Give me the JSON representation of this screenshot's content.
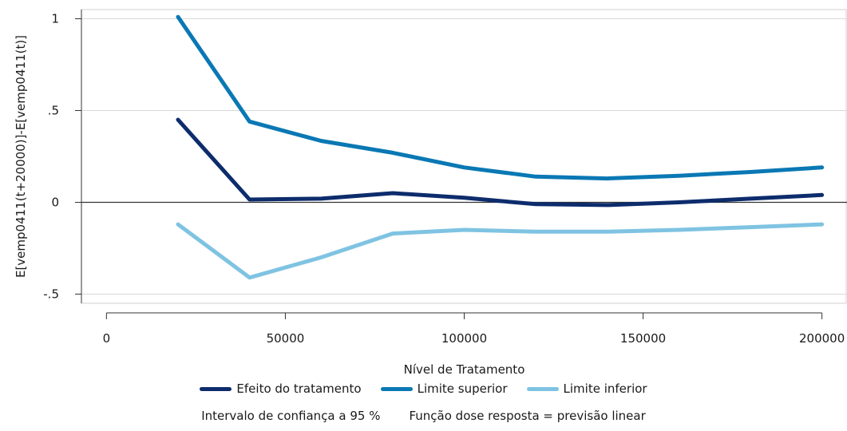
{
  "chart_data": {
    "type": "line",
    "xlabel": "Nível de Tratamento",
    "ylabel": "E[vemp0411(t+20000)]-E[vemp0411(t)]",
    "xlim": [
      -7000,
      207000
    ],
    "ylim": [
      -0.55,
      1.05
    ],
    "x_ticks": [
      0,
      50000,
      100000,
      150000,
      200000
    ],
    "x_tick_labels": [
      "0",
      "50000",
      "100000",
      "150000",
      "200000"
    ],
    "y_ticks": [
      1,
      0.5,
      0,
      -0.5
    ],
    "y_tick_labels": [
      "1",
      ".5",
      "0",
      "-.5"
    ],
    "grid": "horizontal",
    "x": [
      20000,
      40000,
      60000,
      80000,
      100000,
      120000,
      140000,
      160000,
      180000,
      200000
    ],
    "series": [
      {
        "name": "Efeito do tratamento",
        "color": "#0d2c6c",
        "values": [
          0.45,
          0.015,
          0.02,
          0.05,
          0.025,
          -0.01,
          -0.015,
          0.0,
          0.02,
          0.04
        ]
      },
      {
        "name": "Limite superior",
        "color": "#0a78b4",
        "values": [
          1.01,
          0.44,
          0.335,
          0.27,
          0.19,
          0.14,
          0.13,
          0.145,
          0.165,
          0.19
        ]
      },
      {
        "name": "Limite inferior",
        "color": "#7fc3e2",
        "values": [
          -0.12,
          -0.41,
          -0.3,
          -0.17,
          -0.15,
          -0.16,
          -0.16,
          -0.15,
          -0.135,
          -0.12
        ]
      }
    ],
    "legend_position": "bottom",
    "notes": [
      "Intervalo de confiança a 95 %",
      "Função dose resposta = previsão linear"
    ]
  }
}
